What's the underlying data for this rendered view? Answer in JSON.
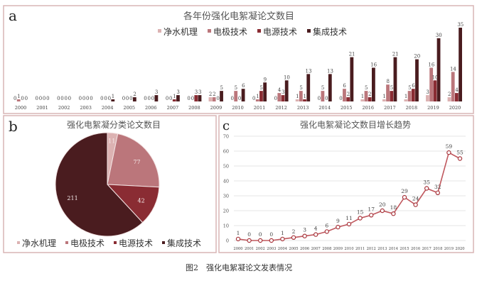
{
  "caption": "图2　强化电絮凝论文发表情况",
  "series_colors": [
    "#dcb2b2",
    "#bb767b",
    "#8a2c33",
    "#4a1c1f"
  ],
  "line_color": "#c0585e",
  "chart_data": [
    {
      "panel_label": "a",
      "type": "bar",
      "title": "各年份强化电絮凝论文数目",
      "legend_position": "top",
      "categories": [
        "2000",
        "2001",
        "2002",
        "2003",
        "2004",
        "2005",
        "2006",
        "2007",
        "2008",
        "2009",
        "2010",
        "2011",
        "2012",
        "2013",
        "2014",
        "2015",
        "2016",
        "2017",
        "2018",
        "2019",
        "2020"
      ],
      "series": [
        {
          "name": "净水机理",
          "values": [
            0,
            0,
            0,
            0,
            0,
            0,
            0,
            0,
            0,
            2,
            0,
            0,
            0,
            1,
            0,
            0,
            1,
            1,
            1,
            3,
            2
          ]
        },
        {
          "name": "电极技术",
          "values": [
            1,
            0,
            0,
            0,
            0,
            0,
            0,
            0,
            0,
            2,
            5,
            1,
            4,
            5,
            5,
            6,
            5,
            8,
            5,
            16,
            14
          ]
        },
        {
          "name": "电源技术",
          "values": [
            0,
            0,
            0,
            0,
            0,
            0,
            0,
            1,
            3,
            0,
            0,
            5,
            3,
            1,
            0,
            2,
            2,
            5,
            6,
            10,
            4
          ]
        },
        {
          "name": "集成技术",
          "values": [
            0,
            0,
            0,
            0,
            1,
            2,
            3,
            3,
            3,
            5,
            6,
            9,
            10,
            13,
            13,
            21,
            16,
            21,
            20,
            30,
            35
          ]
        }
      ],
      "ylim": [
        0,
        35
      ],
      "grid": false
    },
    {
      "panel_label": "b",
      "type": "pie",
      "title": "强化电絮凝分类论文数目",
      "legend_position": "bottom",
      "categories": [
        "净水机理",
        "电极技术",
        "电源技术",
        "集成技术"
      ],
      "values": [
        11,
        77,
        42,
        211
      ]
    },
    {
      "panel_label": "c",
      "type": "line",
      "title": "强化电絮凝论文数目增长趋势",
      "x": [
        "2000",
        "2001",
        "2002",
        "2003",
        "2004",
        "2005",
        "2006",
        "2007",
        "2008",
        "2009",
        "2010",
        "2011",
        "2012",
        "2013",
        "2014",
        "2015",
        "2016",
        "2017",
        "2018",
        "2019",
        "2020"
      ],
      "y": [
        1,
        0,
        0,
        0,
        1,
        2,
        3,
        4,
        6,
        9,
        11,
        15,
        17,
        20,
        18,
        29,
        24,
        35,
        32,
        59,
        55
      ],
      "ylim": [
        0,
        70
      ],
      "yticks": [
        0,
        10,
        20,
        30,
        40,
        50,
        60,
        70
      ],
      "grid": true
    }
  ]
}
